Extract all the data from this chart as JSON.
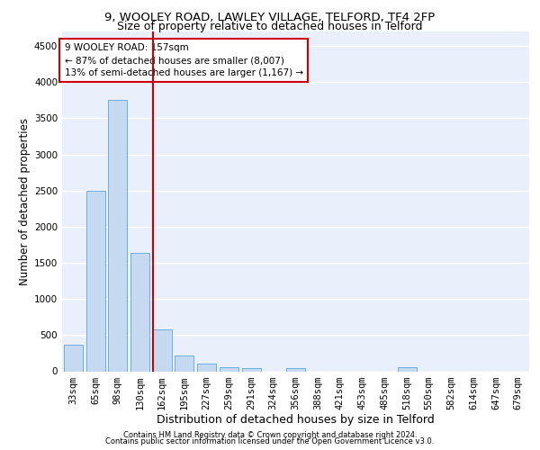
{
  "title1": "9, WOOLEY ROAD, LAWLEY VILLAGE, TELFORD, TF4 2FP",
  "title2": "Size of property relative to detached houses in Telford",
  "xlabel": "Distribution of detached houses by size in Telford",
  "ylabel": "Number of detached properties",
  "categories": [
    "33sqm",
    "65sqm",
    "98sqm",
    "130sqm",
    "162sqm",
    "195sqm",
    "227sqm",
    "259sqm",
    "291sqm",
    "324sqm",
    "356sqm",
    "388sqm",
    "421sqm",
    "453sqm",
    "485sqm",
    "518sqm",
    "550sqm",
    "582sqm",
    "614sqm",
    "647sqm",
    "679sqm"
  ],
  "values": [
    370,
    2500,
    3750,
    1640,
    580,
    220,
    100,
    60,
    40,
    0,
    40,
    0,
    0,
    0,
    0,
    60,
    0,
    0,
    0,
    0,
    0
  ],
  "bar_color": "#c5d9f0",
  "bar_edge_color": "#6aaee0",
  "vline_color": "#cc0000",
  "annotation_text": "9 WOOLEY ROAD: 157sqm\n← 87% of detached houses are smaller (8,007)\n13% of semi-detached houses are larger (1,167) →",
  "annotation_box_color": "#ffffff",
  "annotation_box_edge": "#cc0000",
  "ylim": [
    0,
    4700
  ],
  "yticks": [
    0,
    500,
    1000,
    1500,
    2000,
    2500,
    3000,
    3500,
    4000,
    4500
  ],
  "footer1": "Contains HM Land Registry data © Crown copyright and database right 2024.",
  "footer2": "Contains public sector information licensed under the Open Government Licence v3.0.",
  "bg_color": "#eaf0fb",
  "grid_color": "#ffffff",
  "title1_fontsize": 9.5,
  "title2_fontsize": 9,
  "xlabel_fontsize": 9,
  "ylabel_fontsize": 8.5,
  "tick_fontsize": 7.5,
  "footer_fontsize": 6,
  "ann_fontsize": 7.5,
  "vline_pos": 3.57
}
